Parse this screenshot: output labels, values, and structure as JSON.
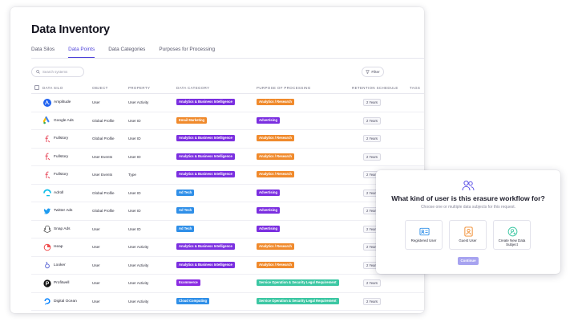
{
  "title": "Data Inventory",
  "tabs": [
    {
      "label": "Data Silos",
      "active": false
    },
    {
      "label": "Data Points",
      "active": true
    },
    {
      "label": "Data Categories",
      "active": false
    },
    {
      "label": "Purposes for Processing",
      "active": false
    }
  ],
  "search": {
    "placeholder": "Search systems"
  },
  "filter_label": "Filter",
  "columns": [
    "DATA SILO",
    "OBJECT",
    "PROPERTY",
    "DATA CATEGORY",
    "PURPOSE OF PROCESSING",
    "RETENTION SCHEDULE",
    "TAGS"
  ],
  "rows": [
    {
      "silo": "Amplitude",
      "object": "User",
      "property": "User Activity",
      "category": "Analytics & Business Intelligence",
      "purpose": "Analytics / Research",
      "retention": "2 Years"
    },
    {
      "silo": "Google Ads",
      "object": "Global Profile",
      "property": "User ID",
      "category": "Email Marketing",
      "purpose": "Advertising",
      "retention": "2 Years"
    },
    {
      "silo": "Fullstory",
      "object": "Global Profile",
      "property": "User ID",
      "category": "Analytics & Business Intelligence",
      "purpose": "Analytics / Research",
      "retention": "2 Years"
    },
    {
      "silo": "Fullstory",
      "object": "User Events",
      "property": "User ID",
      "category": "Analytics & Business Intelligence",
      "purpose": "Analytics / Research",
      "retention": "2 Years"
    },
    {
      "silo": "Fullstory",
      "object": "User Events",
      "property": "Type",
      "category": "Analytics & Business Intelligence",
      "purpose": "Analytics / Research",
      "retention": "2 Years"
    },
    {
      "silo": "Adroll",
      "object": "Global Profile",
      "property": "User ID",
      "category": "Ad Tech",
      "purpose": "Advertising",
      "retention": "2 Years"
    },
    {
      "silo": "Twitter Ads",
      "object": "Global Profile",
      "property": "User ID",
      "category": "Ad Tech",
      "purpose": "Advertising",
      "retention": "2 Years"
    },
    {
      "silo": "Snap Ads",
      "object": "User",
      "property": "User ID",
      "category": "Ad Tech",
      "purpose": "Advertising",
      "retention": "2 Years"
    },
    {
      "silo": "Heap",
      "object": "User",
      "property": "User Activity",
      "category": "Analytics & Business Intelligence",
      "purpose": "Analytics / Research",
      "retention": "2 Years"
    },
    {
      "silo": "Looker",
      "object": "User",
      "property": "User Activity",
      "category": "Analytics & Business Intelligence",
      "purpose": "Analytics / Research",
      "retention": "2 Years"
    },
    {
      "silo": "Profitwell",
      "object": "User",
      "property": "User Activity",
      "category": "Ecommerce",
      "purpose": "Service Operation & Security Legal Requirement",
      "retention": "2 Years"
    },
    {
      "silo": "Digital Ocean",
      "object": "User",
      "property": "User Activity",
      "category": "Cloud Computing",
      "purpose": "Service Operation & Security Legal Requirement",
      "retention": "2 Years"
    }
  ],
  "category_colors": {
    "Analytics & Business Intelligence": "#7b2fe0",
    "Email Marketing": "#f08a2c",
    "Ad Tech": "#2f8fe8",
    "Ecommerce": "#8a2be2",
    "Cloud Computing": "#2f8fe8"
  },
  "purpose_colors": {
    "Analytics / Research": "#f08a2c",
    "Advertising": "#7b2fe0",
    "Service Operation & Security Legal Requirement": "#3cc7a3"
  },
  "modal": {
    "title": "What kind of user is this erasure workflow for?",
    "subtitle": "Choose one or multiple data subjects for this request.",
    "choices": [
      "Registered User",
      "Guest User",
      "Create New Data Subject"
    ],
    "continue_label": "Continue",
    "accent": "#5b50e6"
  }
}
